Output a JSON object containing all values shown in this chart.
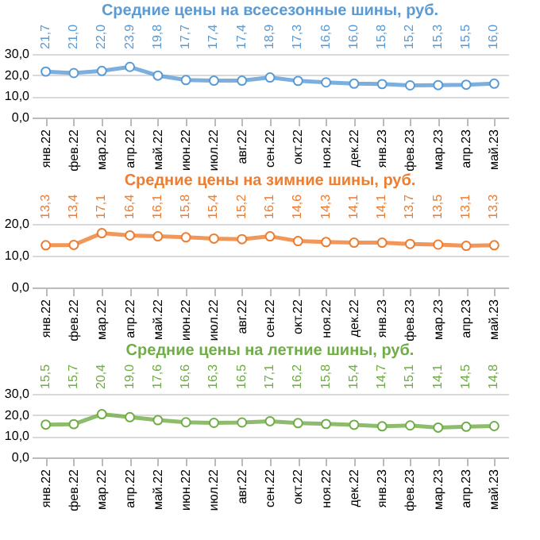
{
  "chart_data": [
    {
      "type": "line",
      "title": "Средние цены на всесезонные шины, руб.",
      "categories": [
        "янв.22",
        "фев.22",
        "мар.22",
        "апр.22",
        "май.22",
        "июн.22",
        "июл.22",
        "авг.22",
        "сен.22",
        "окт.22",
        "ноя.22",
        "дек.22",
        "янв.23",
        "фев.23",
        "мар.23",
        "апр.23",
        "май.23"
      ],
      "ylim": [
        0,
        30
      ],
      "yticks": [
        {
          "value": 0,
          "label": "0,0"
        },
        {
          "value": 10,
          "label": "10,0"
        },
        {
          "value": 20,
          "label": "20,0"
        },
        {
          "value": 30,
          "label": "30,0"
        }
      ],
      "grid": "y",
      "marker": "circle",
      "line_style": "solid",
      "series": [
        {
          "color": "#5b9bd5",
          "values": [
            21.7,
            21.0,
            22.0,
            23.9,
            19.8,
            17.7,
            17.4,
            17.4,
            18.9,
            17.3,
            16.6,
            16.0,
            15.8,
            15.2,
            15.3,
            15.5,
            16.0
          ],
          "value_labels": [
            "21,7",
            "21,0",
            "22,0",
            "23,9",
            "19,8",
            "17,7",
            "17,4",
            "17,4",
            "18,9",
            "17,3",
            "16,6",
            "16,0",
            "15,8",
            "15,2",
            "15,3",
            "15,5",
            "16,0"
          ]
        }
      ]
    },
    {
      "type": "line",
      "title": "Средние цены на зимние шины, руб.",
      "categories": [
        "янв.22",
        "фев.22",
        "мар.22",
        "апр.22",
        "май.22",
        "июн.22",
        "июл.22",
        "авг.22",
        "сен.22",
        "окт.22",
        "ноя.22",
        "дек.22",
        "янв.23",
        "фев.23",
        "мар.23",
        "апр.23",
        "май.23"
      ],
      "ylim": [
        0,
        20
      ],
      "yticks": [
        {
          "value": 0,
          "label": "0,0"
        },
        {
          "value": 10,
          "label": "10,0"
        },
        {
          "value": 20,
          "label": "20,0"
        }
      ],
      "grid": "y",
      "marker": "circle",
      "line_style": "solid",
      "series": [
        {
          "color": "#ed7d31",
          "values": [
            13.3,
            13.4,
            17.1,
            16.4,
            16.1,
            15.8,
            15.4,
            15.2,
            16.1,
            14.6,
            14.3,
            14.1,
            14.1,
            13.7,
            13.5,
            13.1,
            13.3
          ],
          "value_labels": [
            "13,3",
            "13,4",
            "17,1",
            "16,4",
            "16,1",
            "15,8",
            "15,4",
            "15,2",
            "16,1",
            "14,6",
            "14,3",
            "14,1",
            "14,1",
            "13,7",
            "13,5",
            "13,1",
            "13,3"
          ]
        }
      ]
    },
    {
      "type": "line",
      "title": "Средние цены на летние шины, руб.",
      "categories": [
        "янв.22",
        "фев.22",
        "мар.22",
        "апр.22",
        "май.22",
        "июн.22",
        "июл.22",
        "авг.22",
        "сен.22",
        "окт.22",
        "ноя.22",
        "дек.22",
        "янв.23",
        "фев.23",
        "мар.23",
        "апр.23",
        "май.23"
      ],
      "ylim": [
        0,
        30
      ],
      "yticks": [
        {
          "value": 0,
          "label": "0,0"
        },
        {
          "value": 10,
          "label": "10,0"
        },
        {
          "value": 20,
          "label": "20,0"
        },
        {
          "value": 30,
          "label": "30,0"
        }
      ],
      "grid": "y",
      "marker": "circle",
      "line_style": "solid",
      "series": [
        {
          "color": "#70ad47",
          "values": [
            15.5,
            15.7,
            20.4,
            19.0,
            17.6,
            16.6,
            16.3,
            16.5,
            17.1,
            16.2,
            15.8,
            15.4,
            14.7,
            15.1,
            14.1,
            14.5,
            14.8
          ],
          "value_labels": [
            "15,5",
            "15,7",
            "20,4",
            "19,0",
            "17,6",
            "16,6",
            "16,3",
            "16,5",
            "17,1",
            "16,2",
            "15,8",
            "15,4",
            "14,7",
            "15,1",
            "14,1",
            "14,5",
            "14,8"
          ]
        }
      ]
    }
  ]
}
